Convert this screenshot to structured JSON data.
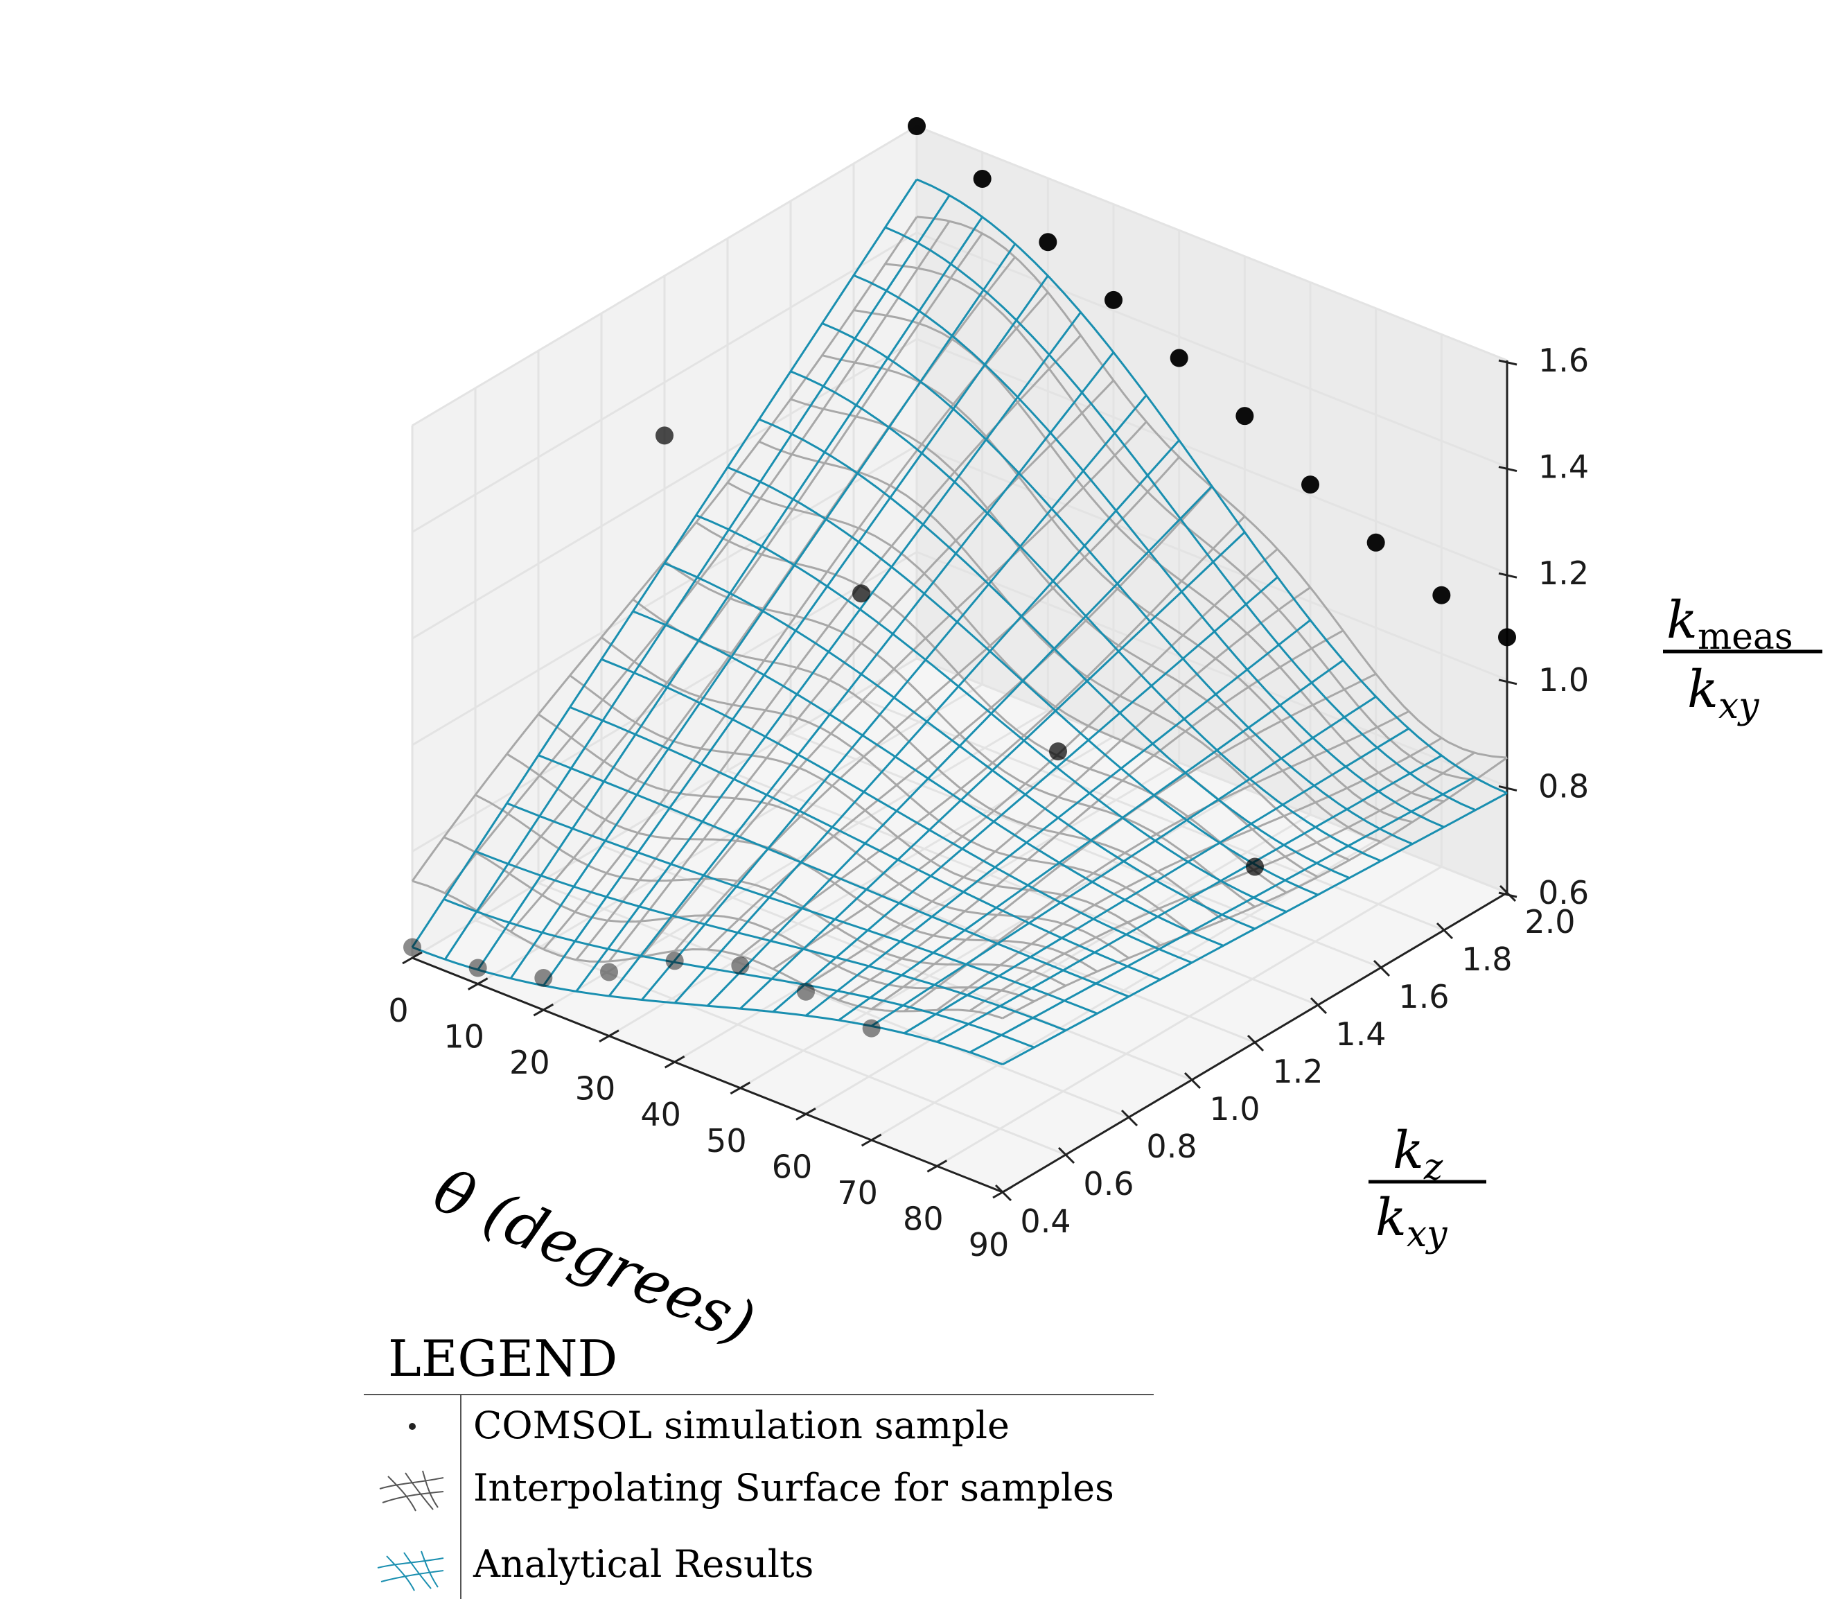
{
  "chart_data": {
    "type": "surface3d",
    "view": "3D perspective",
    "x_axis": {
      "label": "θ (degrees)",
      "ticks": [
        0,
        10,
        20,
        30,
        40,
        50,
        60,
        70,
        80,
        90
      ],
      "range": [
        0,
        90
      ]
    },
    "y_axis": {
      "label_numerator": "k",
      "label_numerator_sub": "z",
      "label_denominator": "k",
      "label_denominator_sub": "xy",
      "ticks": [
        "0.4",
        "0.6",
        "0.8",
        "1.0",
        "1.2",
        "1.4",
        "1.6",
        "1.8",
        "2.0"
      ],
      "range": [
        0.4,
        2.0
      ]
    },
    "z_axis": {
      "label_numerator": "k",
      "label_numerator_sub": "meas",
      "label_denominator": "k",
      "label_denominator_sub": "xy",
      "ticks": [
        "0.6",
        "0.8",
        "1.0",
        "1.2",
        "1.4",
        "1.6"
      ],
      "range": [
        0.6,
        1.6
      ]
    },
    "grid": true,
    "series": [
      {
        "name": "COMSOL simulation sample",
        "style": "scatter",
        "color": "#000000"
      },
      {
        "name": "Interpolating Surface for samples",
        "style": "wireframe",
        "color": "#a8a8a8"
      },
      {
        "name": "Analytical Results",
        "style": "wireframe",
        "color": "#1a8fb0"
      }
    ],
    "points": [
      {
        "theta": 0,
        "ratio": 2.0,
        "k": 1.6
      },
      {
        "theta": 10,
        "ratio": 2.0,
        "k": 1.55
      },
      {
        "theta": 20,
        "ratio": 2.0,
        "k": 1.48
      },
      {
        "theta": 30,
        "ratio": 2.0,
        "k": 1.42
      },
      {
        "theta": 40,
        "ratio": 2.0,
        "k": 1.36
      },
      {
        "theta": 50,
        "ratio": 2.0,
        "k": 1.3
      },
      {
        "theta": 60,
        "ratio": 2.0,
        "k": 1.22
      },
      {
        "theta": 70,
        "ratio": 2.0,
        "k": 1.16
      },
      {
        "theta": 80,
        "ratio": 2.0,
        "k": 1.11
      },
      {
        "theta": 90,
        "ratio": 2.0,
        "k": 1.08
      },
      {
        "theta": 0,
        "ratio": 1.2,
        "k": 1.3
      },
      {
        "theta": 30,
        "ratio": 1.2,
        "k": 1.15
      },
      {
        "theta": 60,
        "ratio": 1.2,
        "k": 1.0
      },
      {
        "theta": 90,
        "ratio": 1.2,
        "k": 0.93
      },
      {
        "theta": 0,
        "ratio": 0.4,
        "k": 0.62
      },
      {
        "theta": 10,
        "ratio": 0.4,
        "k": 0.63
      },
      {
        "theta": 20,
        "ratio": 0.4,
        "k": 0.66
      },
      {
        "theta": 30,
        "ratio": 0.4,
        "k": 0.72
      },
      {
        "theta": 40,
        "ratio": 0.4,
        "k": 0.79
      },
      {
        "theta": 50,
        "ratio": 0.4,
        "k": 0.83
      },
      {
        "theta": 60,
        "ratio": 0.4,
        "k": 0.83
      },
      {
        "theta": 70,
        "ratio": 0.4,
        "k": 0.81
      }
    ]
  },
  "legend": {
    "title": "LEGEND",
    "items": [
      {
        "label": "COMSOL simulation sample"
      },
      {
        "label": "Interpolating Surface for samples"
      },
      {
        "label": "Analytical Results"
      }
    ]
  },
  "colors": {
    "analytical": "#1a8fb0",
    "interpolating": "#a8a8a8",
    "samples": "#000000",
    "pane": "#f2f2f2",
    "grid": "#e3e3e3"
  }
}
